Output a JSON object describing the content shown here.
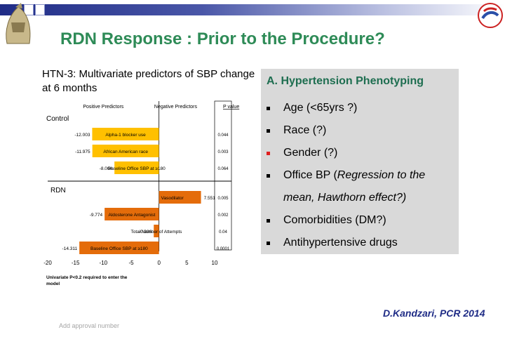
{
  "slide": {
    "title": "RDN Response : Prior to the Procedure?",
    "citation": "D.Kandzari, PCR 2014",
    "approval_note": "Add approval number"
  },
  "chart_title": "HTN-3: Multivariate predictors of SBP change at 6 months",
  "panel": {
    "heading": "A. Hypertension Phenotyping",
    "items": [
      {
        "text": "Age (<65yrs ?)",
        "bullet_color": "#000000"
      },
      {
        "text": "Race (?)",
        "bullet_color": "#000000"
      },
      {
        "text": "Gender  (?)",
        "bullet_color": "#e02020"
      },
      {
        "text_main": "Office BP (",
        "text_italic": "Regression to the mean, Hawthorn effect?)",
        "bullet_color": "#000000"
      },
      {
        "text": "Comorbidities (DM?)",
        "bullet_color": "#000000"
      },
      {
        "text": "Antihypertensive drugs",
        "bullet_color": "#000000"
      }
    ]
  },
  "chart_data": {
    "type": "bar",
    "orientation": "horizontal",
    "headers": {
      "positive": "Positive Predictors",
      "negative": "Negative Predictors",
      "pvalue": "P value"
    },
    "groups": [
      {
        "name": "Control",
        "rows": [
          {
            "label": "Alpha-1 blocker use",
            "value": -12.003,
            "value_label": "-12.003",
            "p": "0.044",
            "bar": true
          },
          {
            "label": "African American race",
            "value": -11.975,
            "value_label": "-11.975",
            "p": "0.003",
            "bar": true
          },
          {
            "label": "Baseline Office SBP at ≥180",
            "value": -8.004,
            "value_label": "-8.004",
            "p": "0.064",
            "bar": true
          }
        ]
      },
      {
        "name": "RDN",
        "rows": [
          {
            "label": "Vasodilator",
            "value": 7.551,
            "value_label": "7.551",
            "p": "0.005",
            "bar": true
          },
          {
            "label": "Aldosterone Antagonist",
            "value": -9.774,
            "value_label": "-9.774",
            "p": "0.002",
            "bar": true
          },
          {
            "label": "Total Number of Attempts",
            "value": -0.936,
            "value_label": "-0.936",
            "p": "0.04",
            "bar": true
          },
          {
            "label": "Baseline Office SBP at ≥180",
            "value": -14.311,
            "value_label": "-14.311",
            "p": "0.0001",
            "bar": true
          }
        ]
      }
    ],
    "xlim": [
      -20,
      10
    ],
    "xticks": [
      "-20",
      "-15",
      "-10",
      "-5",
      "0",
      "5",
      "10"
    ],
    "footnote": "Univariate P<0.2 required to enter the model",
    "colors": {
      "control_bar": "#ffc000",
      "rdn_bar": "#e46c0a"
    }
  }
}
